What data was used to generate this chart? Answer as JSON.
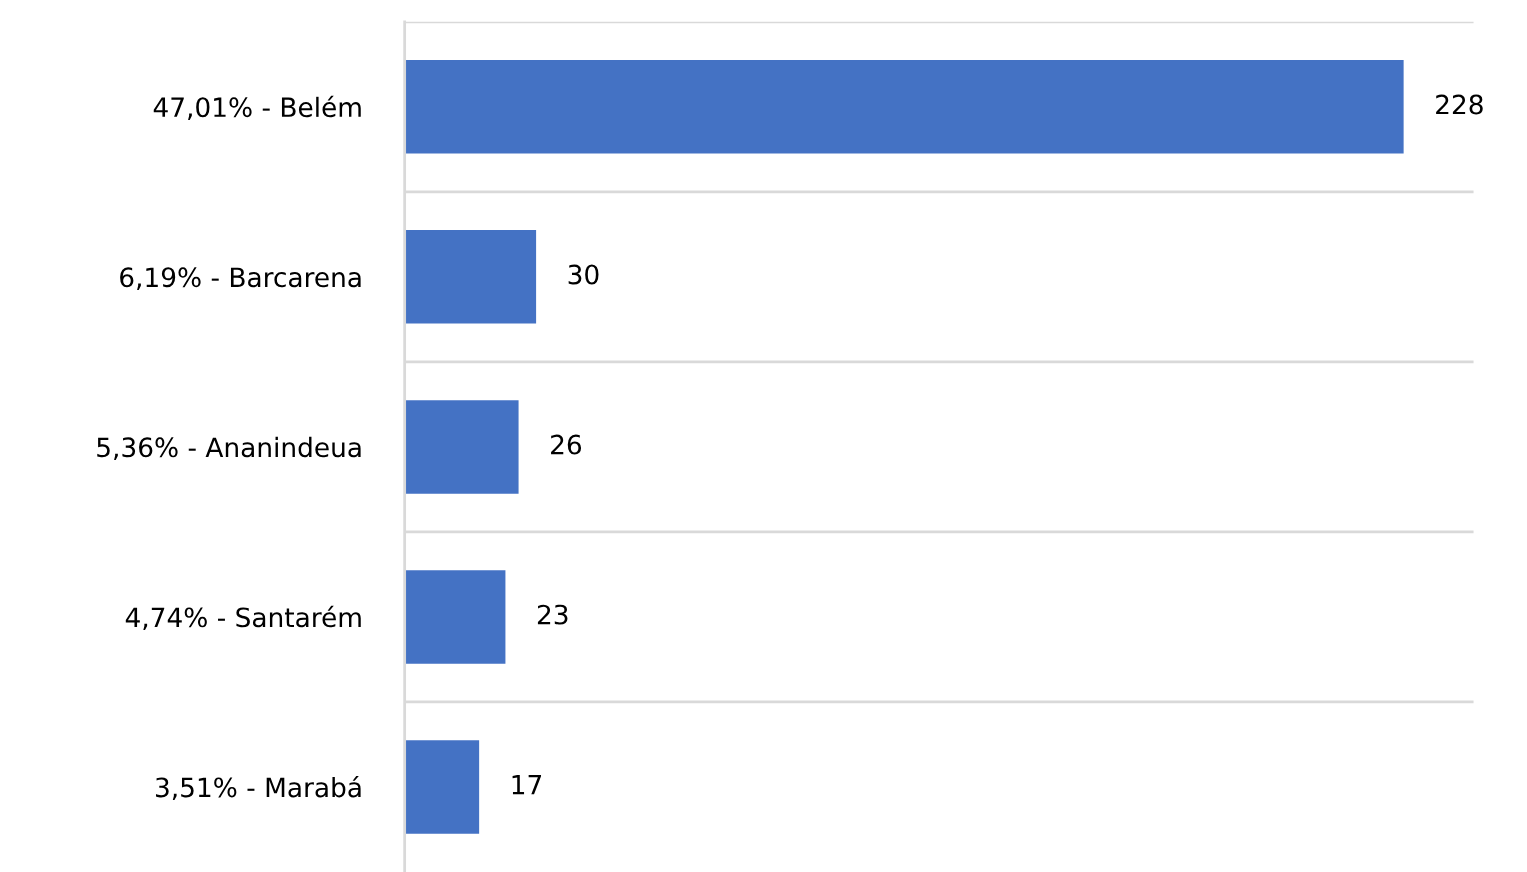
{
  "chart_data": {
    "type": "bar",
    "orientation": "horizontal",
    "categories": [
      "47,01% - Belém",
      "6,19% - Barcarena",
      "5,36% - Ananindeua",
      "4,74% - Santarém",
      "3,51% - Marabá"
    ],
    "values": [
      228,
      30,
      26,
      23,
      17
    ],
    "color": "#4472c4",
    "data_labels": true,
    "grid": "y"
  }
}
